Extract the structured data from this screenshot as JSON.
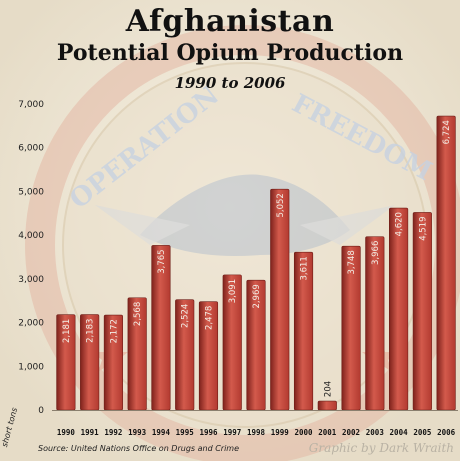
{
  "header": {
    "title": "Afghanistan",
    "subtitle": "Potential Opium Production",
    "years": "1990 to 2006"
  },
  "footer": {
    "source": "Source: United Nations Office on Drugs and Crime",
    "credit": "Graphic by Dark Wraith"
  },
  "watermark": {
    "text_left": "OPERATION",
    "text_right": "FREEDOM"
  },
  "colors": {
    "bar": "#b23a30",
    "bar_light": "#d35a4c",
    "bar_dark": "#7e221c",
    "background": "#efe8da"
  },
  "chart_data": {
    "type": "bar",
    "title": "Afghanistan Potential Opium Production",
    "subtitle": "1990 to 2006",
    "categories": [
      "1990",
      "1991",
      "1992",
      "1993",
      "1994",
      "1995",
      "1996",
      "1997",
      "1998",
      "1999",
      "2000",
      "2001",
      "2002",
      "2003",
      "2004",
      "2005",
      "2006"
    ],
    "values": [
      2181,
      2183,
      2172,
      2568,
      3765,
      2524,
      2478,
      3091,
      2969,
      5052,
      3611,
      204,
      3748,
      3966,
      4620,
      4519,
      6724
    ],
    "value_labels": [
      "2,181",
      "2,183",
      "2,172",
      "2,568",
      "3,765",
      "2,524",
      "2,478",
      "3,091",
      "2,969",
      "5,052",
      "3,611",
      "204",
      "3,748",
      "3,966",
      "4,620",
      "4,519",
      "6,724"
    ],
    "ylabel": "short tons",
    "xlabel": "",
    "ylim": [
      0,
      7000
    ],
    "yticks": [
      "0",
      "1,000",
      "2,000",
      "3,000",
      "4,000",
      "5,000",
      "6,000",
      "7,000"
    ],
    "grid": false,
    "legend": "none"
  }
}
